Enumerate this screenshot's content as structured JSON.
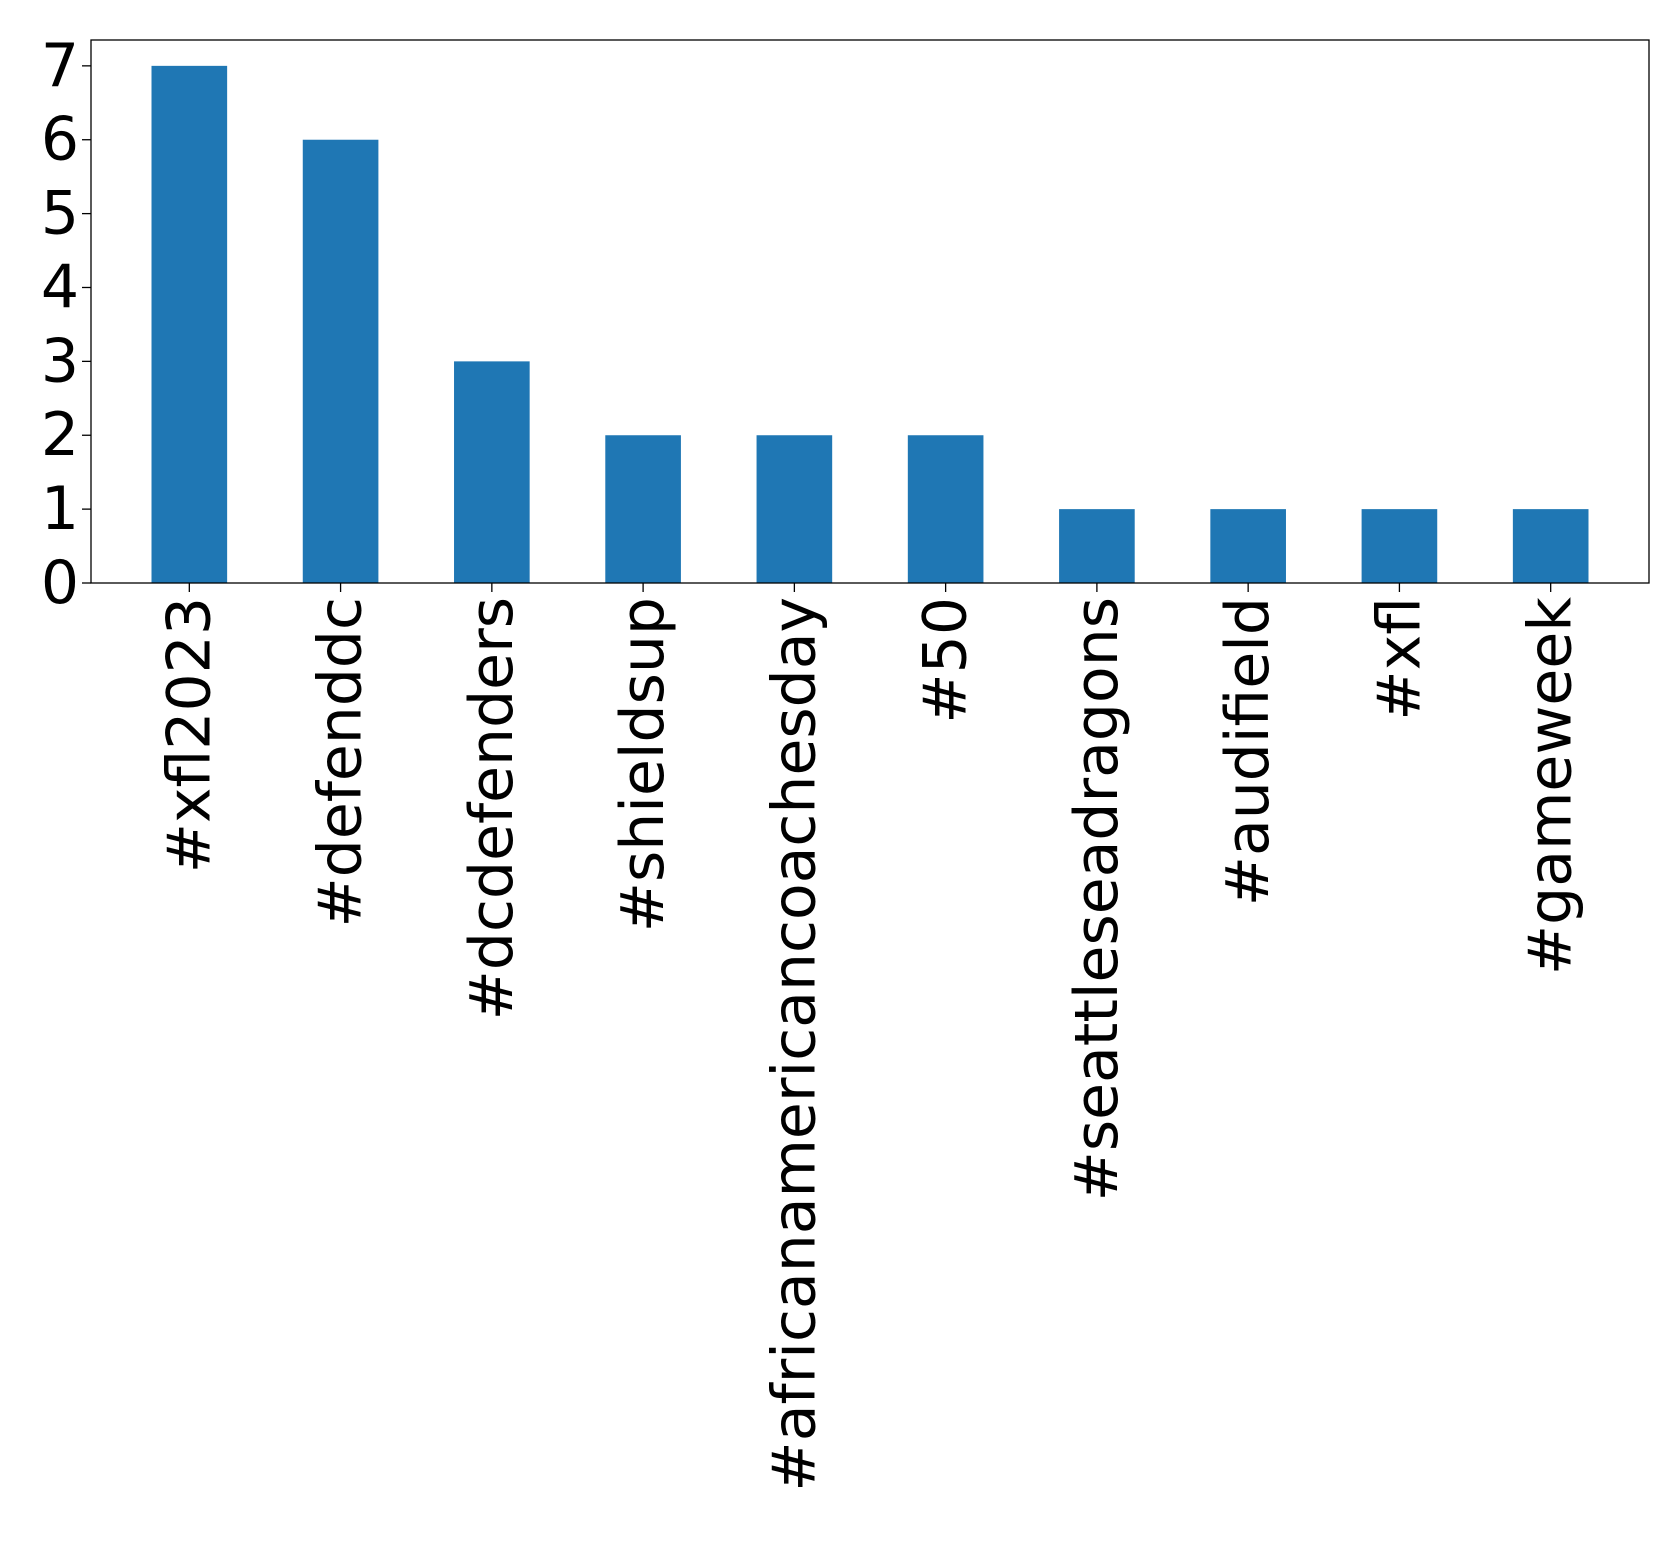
{
  "chart_data": {
    "type": "bar",
    "title": "",
    "xlabel": "",
    "ylabel": "",
    "categories": [
      "#xfl2023",
      "#defenddc",
      "#dcdefenders",
      "#shieldsup",
      "#africanamericancoachesday",
      "#50",
      "#seattleseadragons",
      "#audifield",
      "#xfl",
      "#gameweek"
    ],
    "values": [
      7,
      6,
      3,
      2,
      2,
      2,
      1,
      1,
      1,
      1
    ],
    "ylim": [
      0,
      7.35
    ],
    "yticks": [
      0,
      1,
      2,
      3,
      4,
      5,
      6,
      7
    ],
    "grid": false,
    "legend": "none",
    "bar_color": "#1f77b4"
  }
}
